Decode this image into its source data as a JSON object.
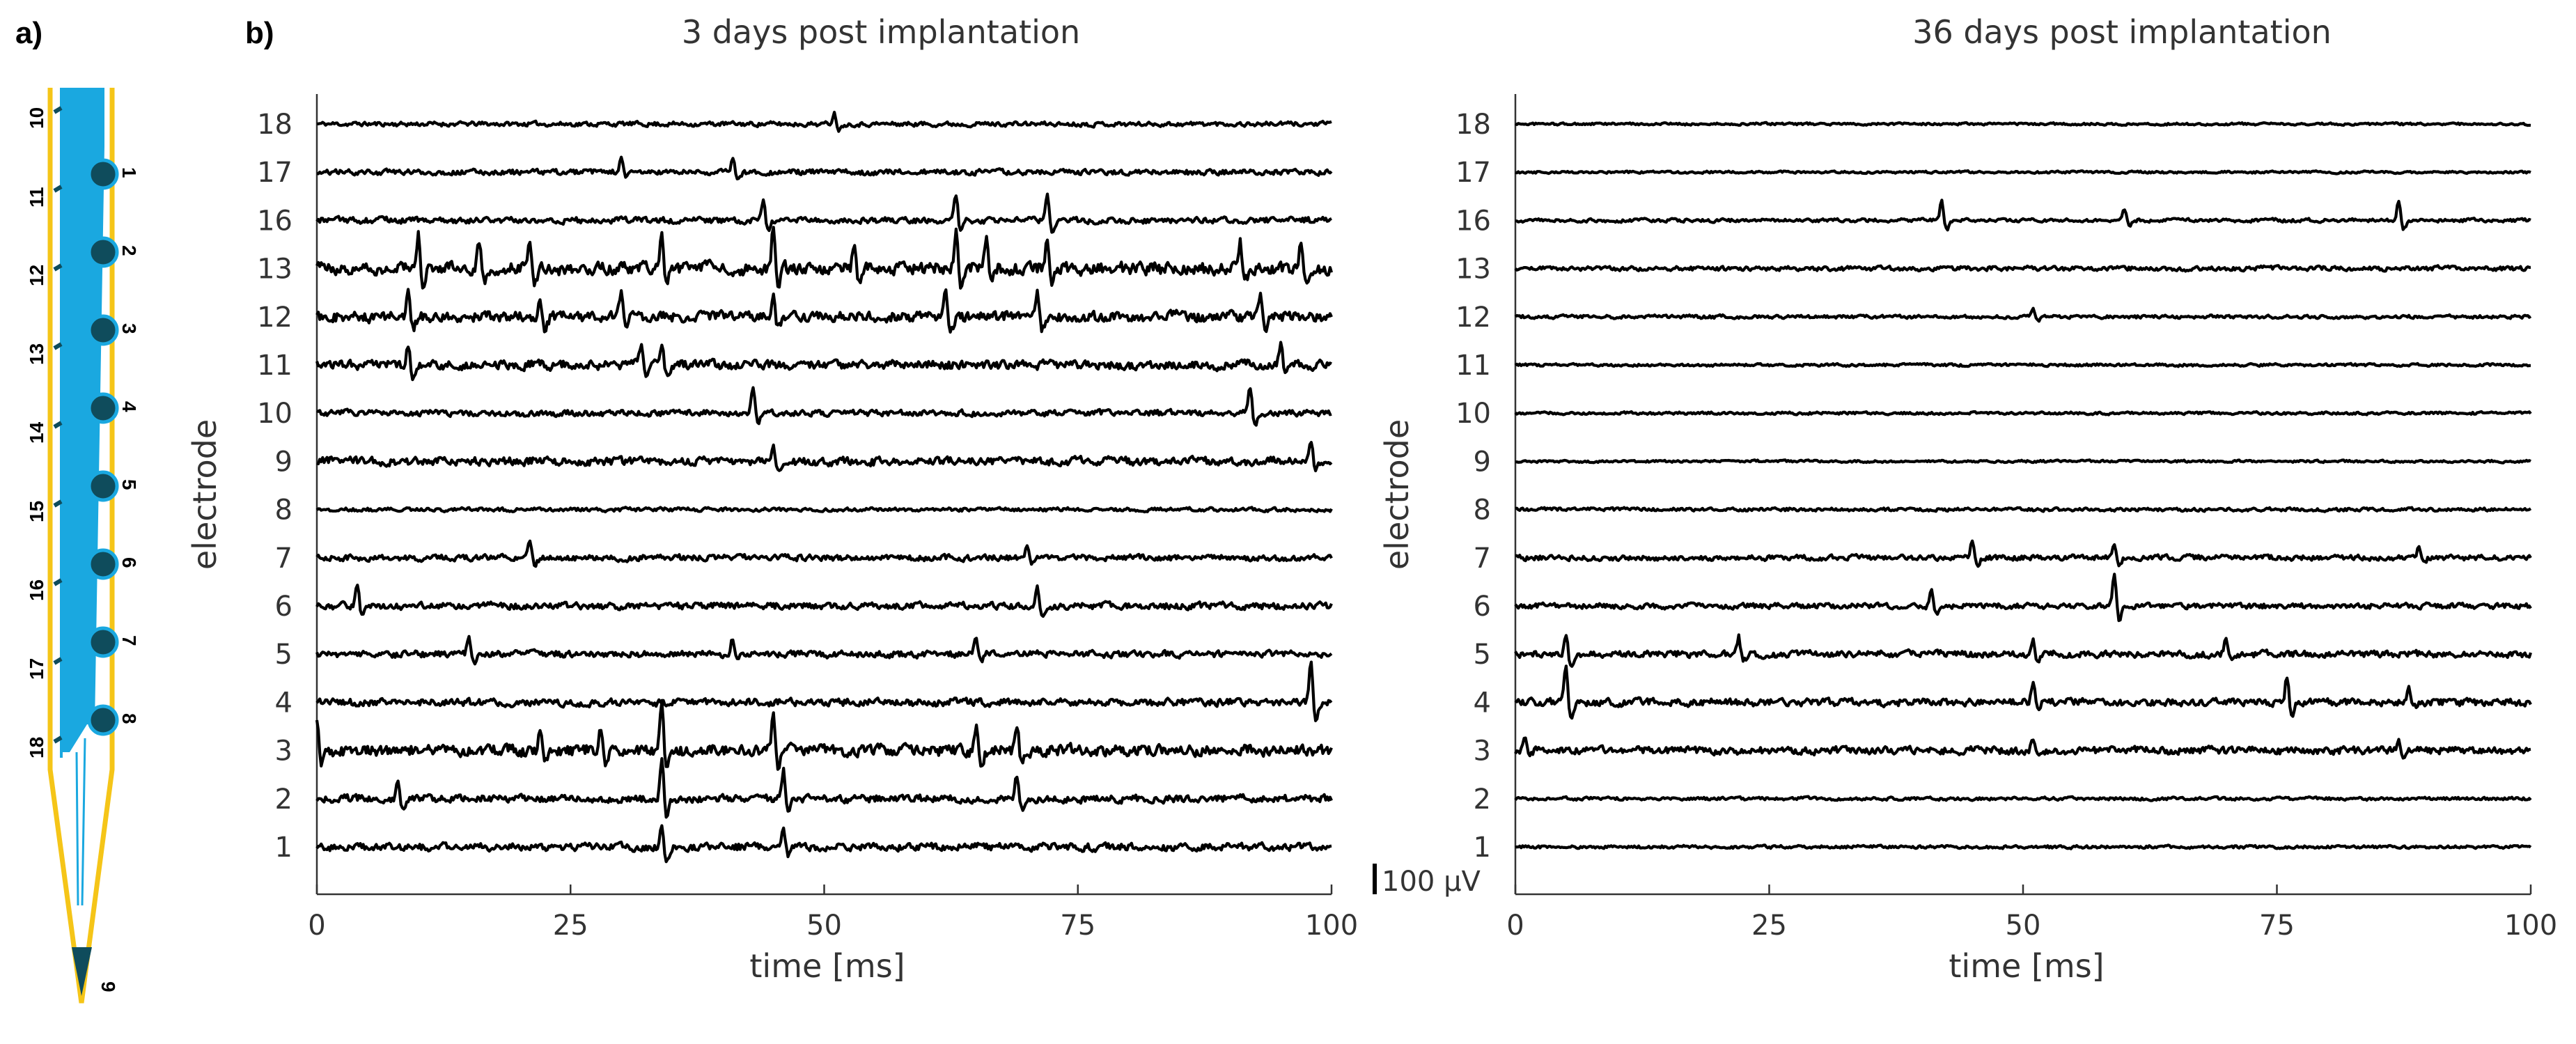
{
  "panel_a": {
    "label": "a)",
    "electrodes_left": [
      "10",
      "11",
      "12",
      "13",
      "14",
      "15",
      "16",
      "17",
      "18"
    ],
    "electrodes_right": [
      "1",
      "2",
      "3",
      "4",
      "5",
      "6",
      "7",
      "8"
    ],
    "tip_electrode": "9",
    "colors": {
      "outline": "#f5c518",
      "tracks": "#1aa8e0",
      "electrode": "#0f4c5c"
    }
  },
  "panel_b": {
    "label": "b)",
    "scale_bar_label": "100 µV"
  },
  "chart_data": [
    {
      "type": "line",
      "title": "3 days post implantation",
      "xlabel": "time [ms]",
      "ylabel": "electrode",
      "xlim": [
        0,
        100
      ],
      "x_ticks": [
        "0",
        "25",
        "50",
        "75",
        "100"
      ],
      "y_categories": [
        "18",
        "17",
        "16",
        "13",
        "12",
        "11",
        "10",
        "9",
        "8",
        "7",
        "6",
        "5",
        "4",
        "3",
        "2",
        "1"
      ],
      "scale_bar": {
        "value": 100,
        "unit": "µV"
      },
      "noise_amplitude_uV": [
        12,
        14,
        16,
        34,
        28,
        24,
        16,
        22,
        10,
        16,
        18,
        18,
        20,
        30,
        20,
        20
      ],
      "spike_times_ms": [
        [
          51
        ],
        [
          30,
          41
        ],
        [
          44,
          63,
          72
        ],
        [
          10,
          16,
          21,
          34,
          45,
          53,
          63,
          66,
          72,
          91,
          97
        ],
        [
          9,
          22,
          30,
          45,
          62,
          71,
          93
        ],
        [
          9,
          32,
          34,
          95
        ],
        [
          43,
          92
        ],
        [
          45,
          98
        ],
        [],
        [
          21,
          70
        ],
        [
          4,
          71
        ],
        [
          15,
          41,
          65
        ],
        [
          98
        ],
        [
          0,
          22,
          28,
          34,
          45,
          65,
          69
        ],
        [
          8,
          34,
          46,
          69
        ],
        [
          34,
          46
        ]
      ],
      "spike_amplitude_uV": [
        [
          40
        ],
        [
          50,
          50
        ],
        [
          70,
          90,
          90
        ],
        [
          120,
          100,
          110,
          120,
          140,
          100,
          130,
          110,
          120,
          100,
          90
        ],
        [
          100,
          80,
          80,
          90,
          90,
          90,
          80
        ],
        [
          80,
          80,
          80,
          70
        ],
        [
          80,
          90
        ],
        [
          60,
          60
        ],
        [],
        [
          50,
          50
        ],
        [
          80,
          70
        ],
        [
          60,
          60,
          60
        ],
        [
          150
        ],
        [
          100,
          90,
          90,
          150,
          120,
          90,
          90
        ],
        [
          70,
          140,
          100,
          80
        ],
        [
          90,
          60
        ]
      ]
    },
    {
      "type": "line",
      "title": "36 days post implantation",
      "xlabel": "time [ms]",
      "ylabel": "electrode",
      "xlim": [
        0,
        100
      ],
      "x_ticks": [
        "0",
        "25",
        "50",
        "75",
        "100"
      ],
      "y_categories": [
        "18",
        "17",
        "16",
        "13",
        "12",
        "11",
        "10",
        "9",
        "8",
        "7",
        "6",
        "5",
        "4",
        "3",
        "2",
        "1"
      ],
      "noise_amplitude_uV": [
        6,
        6,
        9,
        12,
        9,
        7,
        7,
        6,
        9,
        14,
        14,
        18,
        20,
        20,
        8,
        8
      ],
      "spike_times_ms": [
        [],
        [],
        [
          42,
          60,
          87
        ],
        [],
        [
          51
        ],
        [],
        [],
        [],
        [],
        [
          45,
          59,
          89
        ],
        [
          41,
          59
        ],
        [
          5,
          22,
          51,
          70
        ],
        [
          5,
          51,
          76,
          88
        ],
        [
          1,
          51,
          87
        ],
        [],
        []
      ],
      "spike_amplitude_uV": [
        [],
        [],
        [
          70,
          40,
          70
        ],
        [],
        [
          30
        ],
        [],
        [],
        [],
        [],
        [
          60,
          50,
          40
        ],
        [
          60,
          110
        ],
        [
          80,
          60,
          50,
          50
        ],
        [
          120,
          70,
          90,
          50
        ],
        [
          40,
          40,
          40
        ],
        [],
        []
      ]
    }
  ]
}
